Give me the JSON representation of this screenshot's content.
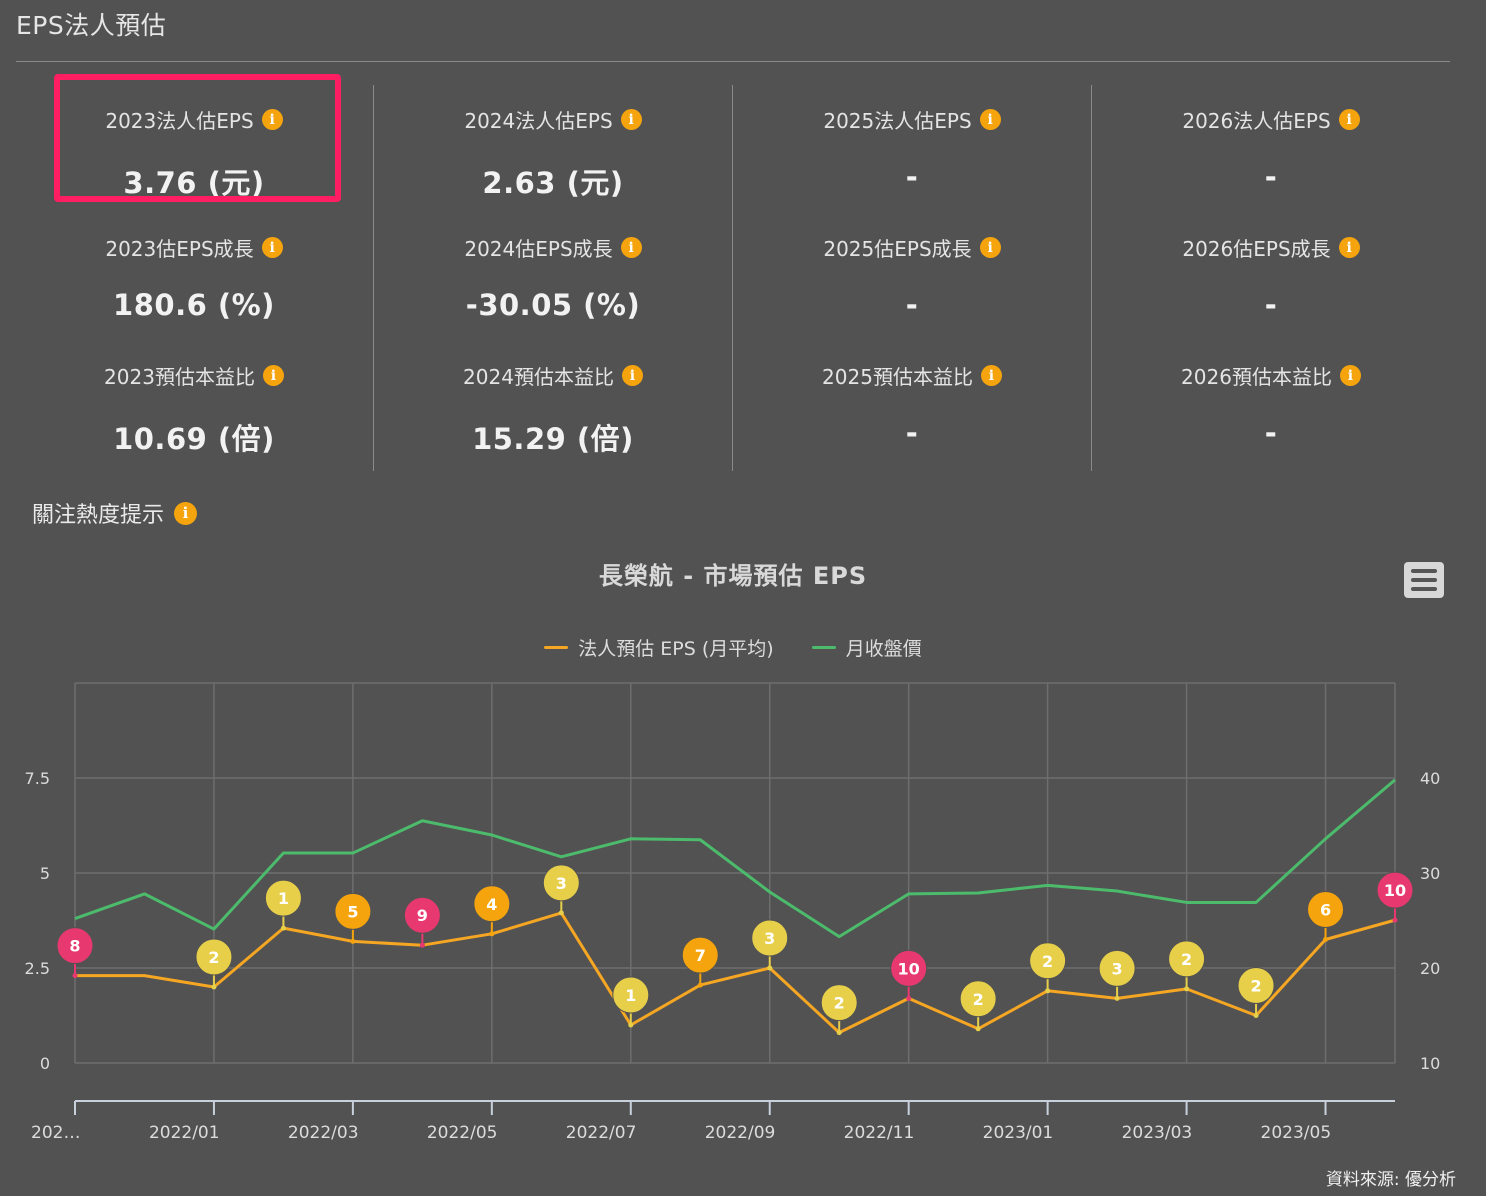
{
  "header": {
    "title": "EPS法人預估"
  },
  "columns": [
    {
      "year": "2023",
      "metrics": [
        {
          "label": "2023法人估EPS",
          "value": "3.76 (元)"
        },
        {
          "label": "2023估EPS成長",
          "value": "180.6 (%)"
        },
        {
          "label": "2023預估本益比",
          "value": "10.69 (倍)"
        }
      ]
    },
    {
      "year": "2024",
      "metrics": [
        {
          "label": "2024法人估EPS",
          "value": "2.63 (元)"
        },
        {
          "label": "2024估EPS成長",
          "value": "-30.05 (%)"
        },
        {
          "label": "2024預估本益比",
          "value": "15.29 (倍)"
        }
      ]
    },
    {
      "year": "2025",
      "metrics": [
        {
          "label": "2025法人估EPS",
          "value": "-"
        },
        {
          "label": "2025估EPS成長",
          "value": "-"
        },
        {
          "label": "2025預估本益比",
          "value": "-"
        }
      ]
    },
    {
      "year": "2026",
      "metrics": [
        {
          "label": "2026法人估EPS",
          "value": "-"
        },
        {
          "label": "2026估EPS成長",
          "value": "-"
        },
        {
          "label": "2026預估本益比",
          "value": "-"
        }
      ]
    }
  ],
  "info_icon_glyph": "i",
  "section": {
    "heading": "關注熱度提示"
  },
  "footer": {
    "source": "資料來源: 優分析"
  },
  "colors": {
    "eps_line": "#f5a623",
    "price_line": "#4cbb6c",
    "highlight": "#ff1e62",
    "marker_low": "#e8cf4a",
    "marker_mid": "#f5a40d",
    "marker_high": "#e83870"
  },
  "chart_data": {
    "type": "line",
    "title": "長榮航 - 市場預估 EPS",
    "legend_placement": "top-center",
    "grid": true,
    "x": [
      "2021/11",
      "2021/12",
      "2022/01",
      "2022/02",
      "2022/03",
      "2022/04",
      "2022/05",
      "2022/06",
      "2022/07",
      "2022/08",
      "2022/09",
      "2022/10",
      "2022/11",
      "2022/12",
      "2023/01",
      "2023/02",
      "2023/03",
      "2023/04",
      "2023/05",
      "2023/06"
    ],
    "x_tick_labels": [
      "202…",
      "2022/01",
      "2022/03",
      "2022/05",
      "2022/07",
      "2022/09",
      "2022/11",
      "2023/01",
      "2023/03",
      "2023/05"
    ],
    "y_left": {
      "ticks": [
        "0",
        "2.5",
        "5",
        "7.5"
      ],
      "range": [
        0,
        10
      ]
    },
    "y_right": {
      "ticks": [
        "10",
        "20",
        "30",
        "40"
      ],
      "range": [
        10,
        50
      ]
    },
    "series": [
      {
        "name": "法人預估 EPS (月平均)",
        "axis": "left",
        "values": [
          2.3,
          2.3,
          2.0,
          3.55,
          3.2,
          3.1,
          3.4,
          3.95,
          1.0,
          2.05,
          2.5,
          0.8,
          1.7,
          0.9,
          1.9,
          1.7,
          1.95,
          1.25,
          3.25,
          3.76
        ]
      },
      {
        "name": "月收盤價",
        "axis": "right",
        "values": [
          25.2,
          27.8,
          24.1,
          32.1,
          32.1,
          35.5,
          34.0,
          31.7,
          33.6,
          33.5,
          28.0,
          23.3,
          27.8,
          27.9,
          28.7,
          28.1,
          26.9,
          26.9,
          33.6,
          39.8
        ]
      }
    ],
    "attention_markers": [
      8,
      null,
      2,
      1,
      5,
      9,
      4,
      3,
      1,
      7,
      3,
      2,
      10,
      2,
      2,
      3,
      2,
      2,
      6,
      10
    ]
  }
}
